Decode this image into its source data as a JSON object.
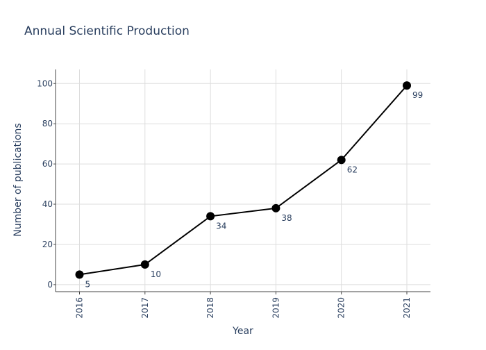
{
  "chart_data": {
    "type": "line",
    "title": "Annual Scientific Production",
    "xlabel": "Year",
    "ylabel": "Number of publications",
    "x": [
      "2016",
      "2017",
      "2018",
      "2019",
      "2020",
      "2021"
    ],
    "values": [
      5,
      10,
      34,
      38,
      62,
      99
    ],
    "data_labels": [
      "5",
      "10",
      "34",
      "38",
      "62",
      "99"
    ],
    "yticks": [
      0,
      20,
      40,
      60,
      80,
      100
    ],
    "ylim": [
      -3.5,
      107
    ],
    "grid": true,
    "legend": "none",
    "line_color": "#000000",
    "marker_color": "#000000",
    "grid_color": "#dddddd",
    "text_color": "#2a3f5f",
    "title_color": "#2a3f5f"
  }
}
